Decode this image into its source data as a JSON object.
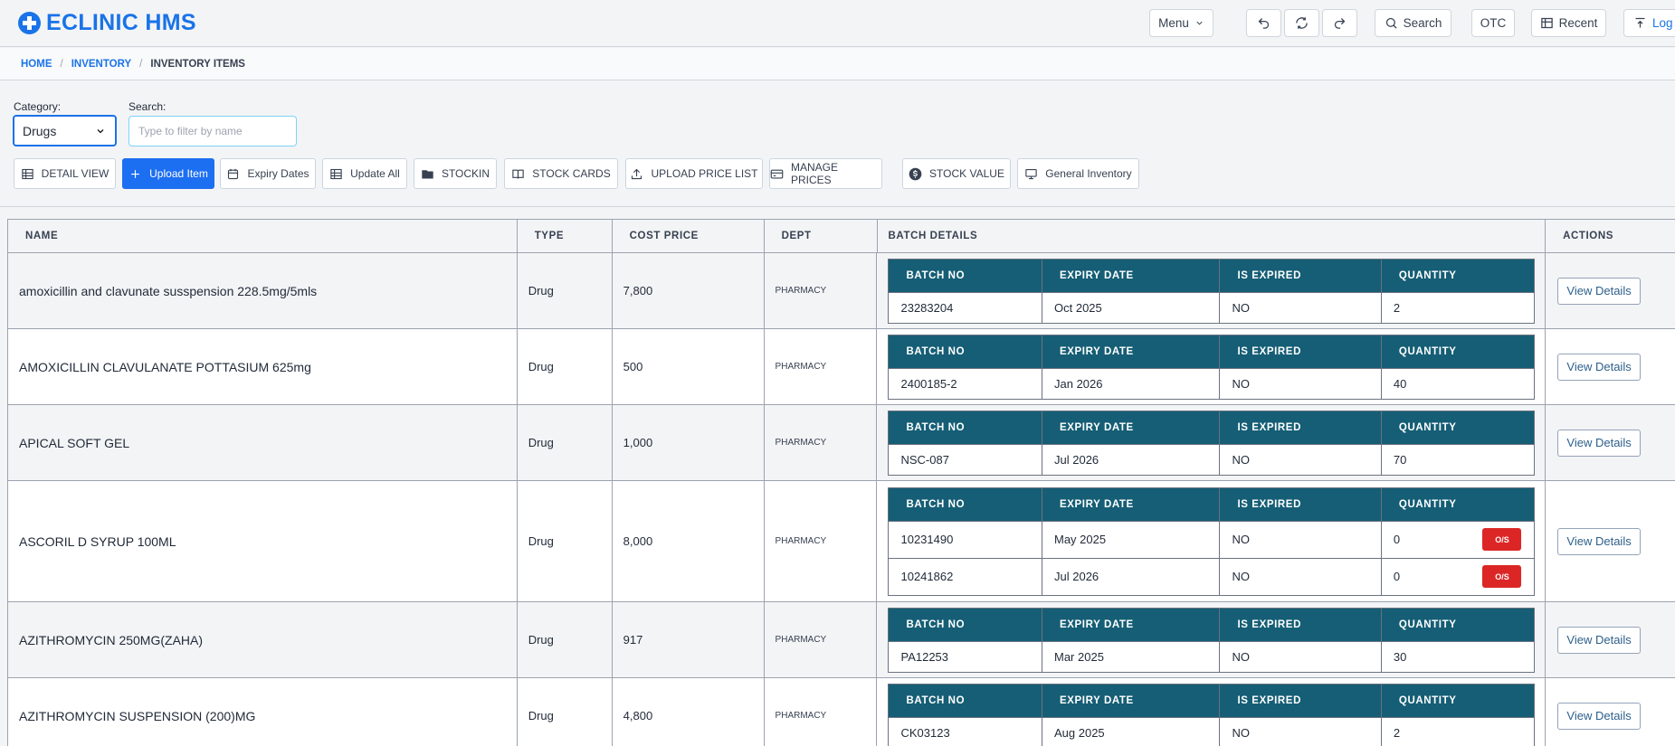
{
  "app": {
    "title": "ECLINIC HMS"
  },
  "topbar": {
    "menu_label": "Menu",
    "search_label": "Search",
    "otc_label": "OTC",
    "recent_label": "Recent",
    "logout_label": "Log"
  },
  "breadcrumb": {
    "home": "HOME",
    "inventory": "INVENTORY",
    "current": "INVENTORY ITEMS",
    "separator": "/"
  },
  "filters": {
    "category_label": "Category:",
    "category_value": "Drugs",
    "search_label": "Search:",
    "search_placeholder": "Type to filter by name"
  },
  "actions": {
    "detail_view": "DETAIL VIEW",
    "upload_item": "Upload Item",
    "expiry_dates": "Expiry Dates",
    "update_all": "Update All",
    "stockin": "STOCKIN",
    "stock_cards": "STOCK CARDS",
    "upload_price_list": "UPLOAD PRICE LIST",
    "manage_prices": "MANAGE PRICES",
    "stock_value": "STOCK VALUE",
    "general_inventory": "General Inventory"
  },
  "table": {
    "headers": {
      "name": "NAME",
      "type": "TYPE",
      "cost_price": "COST PRICE",
      "dept": "DEPT",
      "batch_details": "BATCH DETAILS",
      "actions": "ACTIONS"
    },
    "batch_headers": {
      "batch_no": "BATCH NO",
      "expiry_date": "EXPIRY DATE",
      "is_expired": "IS EXPIRED",
      "quantity": "QUANTITY"
    },
    "view_label": "View Details",
    "os_label": "O/S",
    "rows": [
      {
        "name": "amoxicillin and clavunate susspension 228.5mg/5mls",
        "type": "Drug",
        "cost": "7,800",
        "dept": "PHARMACY",
        "batches": [
          {
            "no": "23283204",
            "expiry": "Oct 2025",
            "expired": "NO",
            "qty": "2"
          }
        ]
      },
      {
        "name": "AMOXICILLIN CLAVULANATE POTTASIUM 625mg",
        "type": "Drug",
        "cost": "500",
        "dept": "PHARMACY",
        "batches": [
          {
            "no": "2400185-2",
            "expiry": "Jan 2026",
            "expired": "NO",
            "qty": "40"
          }
        ]
      },
      {
        "name": "APICAL SOFT GEL",
        "type": "Drug",
        "cost": "1,000",
        "dept": "PHARMACY",
        "batches": [
          {
            "no": "NSC-087",
            "expiry": "Jul 2026",
            "expired": "NO",
            "qty": "70"
          }
        ]
      },
      {
        "name": "ASCORIL D SYRUP 100ML",
        "type": "Drug",
        "cost": "8,000",
        "dept": "PHARMACY",
        "batches": [
          {
            "no": "10231490",
            "expiry": "May 2025",
            "expired": "NO",
            "qty": "0"
          },
          {
            "no": "10241862",
            "expiry": "Jul 2026",
            "expired": "NO",
            "qty": "0"
          }
        ]
      },
      {
        "name": "AZITHROMYCIN 250MG(ZAHA)",
        "type": "Drug",
        "cost": "917",
        "dept": "PHARMACY",
        "batches": [
          {
            "no": "PA12253",
            "expiry": "Mar 2025",
            "expired": "NO",
            "qty": "30"
          }
        ]
      },
      {
        "name": "AZITHROMYCIN SUSPENSION (200)MG",
        "type": "Drug",
        "cost": "4,800",
        "dept": "PHARMACY",
        "batches": [
          {
            "no": "CK03123",
            "expiry": "Aug 2025",
            "expired": "NO",
            "qty": "2"
          }
        ]
      }
    ]
  },
  "colors": {
    "brand": "#1a73e8",
    "batch_header": "#155e75",
    "out_of_stock": "#dc2626",
    "primary_button": "#1d6ff2"
  }
}
